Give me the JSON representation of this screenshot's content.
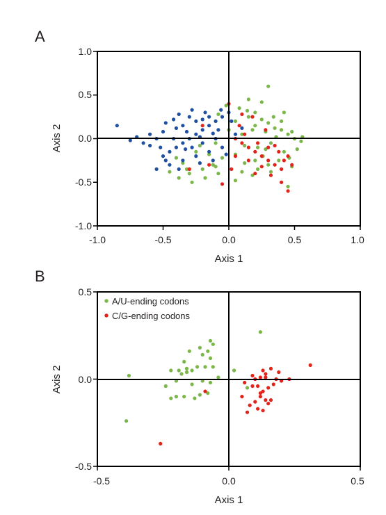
{
  "colors": {
    "green": "#7ab648",
    "red": "#e2231a",
    "blue": "#1f4fa0",
    "axis": "#000000"
  },
  "panel_a": {
    "letter": "A"
  },
  "panel_b": {
    "letter": "B"
  },
  "chart_data": [
    {
      "type": "scatter",
      "panel": "A",
      "xlabel": "Axis 1",
      "ylabel": "Axis 2",
      "xlim": [
        -1.0,
        1.0
      ],
      "ylim": [
        -1.0,
        1.0
      ],
      "xticks": [
        -1.0,
        -0.5,
        0.0,
        0.5,
        1.0
      ],
      "xtick_labels": [
        "-1.0",
        "-0.5",
        "0.0",
        "0.5",
        "1.0"
      ],
      "yticks": [
        1.0,
        0.5,
        0.0,
        -0.5,
        -1.0
      ],
      "ytick_labels": [
        "1.0",
        "0.5",
        "0.0",
        "-0.5",
        "-1.0"
      ],
      "zero_lines": true,
      "series": [
        {
          "color": "green",
          "points": [
            [
              0.15,
              0.25
            ],
            [
              0.2,
              0.3
            ],
            [
              0.25,
              0.22
            ],
            [
              0.3,
              0.18
            ],
            [
              0.35,
              0.12
            ],
            [
              0.4,
              0.1
            ],
            [
              0.45,
              0.05
            ],
            [
              0.5,
              0.0
            ],
            [
              0.55,
              -0.03
            ],
            [
              0.42,
              -0.15
            ],
            [
              0.38,
              -0.25
            ],
            [
              0.3,
              -0.3
            ],
            [
              0.22,
              -0.35
            ],
            [
              0.12,
              -0.28
            ],
            [
              0.05,
              -0.18
            ],
            [
              -0.05,
              -0.22
            ],
            [
              -0.12,
              -0.3
            ],
            [
              -0.2,
              -0.35
            ],
            [
              -0.3,
              -0.4
            ],
            [
              -0.38,
              -0.45
            ],
            [
              -0.45,
              -0.38
            ],
            [
              -0.35,
              -0.28
            ],
            [
              -0.25,
              -0.15
            ],
            [
              -0.1,
              -0.05
            ],
            [
              0.1,
              0.05
            ],
            [
              0.2,
              0.15
            ],
            [
              0.28,
              0.08
            ],
            [
              0.36,
              0.02
            ],
            [
              0.48,
              0.08
            ],
            [
              0.52,
              -0.12
            ],
            [
              0.46,
              -0.22
            ],
            [
              0.32,
              -0.38
            ],
            [
              0.18,
              -0.42
            ],
            [
              0.05,
              -0.48
            ],
            [
              -0.08,
              -0.4
            ],
            [
              -0.18,
              -0.45
            ],
            [
              -0.28,
              -0.5
            ],
            [
              0.25,
              0.42
            ],
            [
              0.3,
              0.6
            ],
            [
              0.15,
              0.45
            ],
            [
              0.08,
              0.35
            ],
            [
              -0.02,
              0.38
            ],
            [
              -0.08,
              0.28
            ],
            [
              0.42,
              0.3
            ],
            [
              0.48,
              -0.32
            ],
            [
              0.45,
              -0.55
            ],
            [
              0.22,
              -0.1
            ],
            [
              0.12,
              -0.08
            ],
            [
              0.32,
              -0.05
            ],
            [
              0.4,
              0.2
            ],
            [
              -0.15,
              -0.18
            ],
            [
              -0.22,
              -0.08
            ],
            [
              0.0,
              0.1
            ],
            [
              0.05,
              0.2
            ],
            [
              0.26,
              -0.2
            ],
            [
              0.18,
              0.1
            ],
            [
              0.34,
              0.25
            ],
            [
              0.2,
              -0.25
            ],
            [
              -0.4,
              -0.22
            ],
            [
              -0.32,
              -0.35
            ],
            [
              0.1,
              -0.38
            ],
            [
              0.56,
              0.02
            ],
            [
              -0.1,
              -0.32
            ],
            [
              0.28,
              -0.12
            ],
            [
              0.14,
              0.32
            ]
          ]
        },
        {
          "color": "blue",
          "points": [
            [
              -0.2,
              0.1
            ],
            [
              -0.25,
              0.05
            ],
            [
              -0.3,
              0.0
            ],
            [
              -0.35,
              -0.05
            ],
            [
              -0.4,
              -0.1
            ],
            [
              -0.45,
              -0.15
            ],
            [
              -0.5,
              -0.2
            ],
            [
              -0.15,
              0.15
            ],
            [
              -0.1,
              0.2
            ],
            [
              -0.05,
              0.25
            ],
            [
              0.0,
              0.3
            ],
            [
              -0.25,
              0.2
            ],
            [
              -0.3,
              0.25
            ],
            [
              -0.35,
              0.15
            ],
            [
              -0.4,
              0.12
            ],
            [
              -0.5,
              0.08
            ],
            [
              -0.55,
              0.0
            ],
            [
              -0.6,
              -0.08
            ],
            [
              -0.7,
              0.02
            ],
            [
              -0.85,
              0.15
            ],
            [
              -0.55,
              -0.35
            ],
            [
              -0.45,
              -0.3
            ],
            [
              -0.35,
              -0.25
            ],
            [
              -0.25,
              -0.2
            ],
            [
              -0.15,
              -0.15
            ],
            [
              -0.05,
              -0.1
            ],
            [
              0.05,
              0.05
            ],
            [
              0.1,
              0.12
            ],
            [
              -0.2,
              -0.05
            ],
            [
              -0.1,
              0.0
            ],
            [
              -0.18,
              0.3
            ],
            [
              -0.28,
              0.33
            ],
            [
              -0.38,
              0.28
            ],
            [
              -0.42,
              0.22
            ],
            [
              -0.33,
              -0.12
            ],
            [
              -0.22,
              -0.28
            ],
            [
              -0.12,
              -0.25
            ],
            [
              -0.02,
              -0.18
            ],
            [
              -0.6,
              0.05
            ],
            [
              -0.48,
              -0.25
            ],
            [
              -0.65,
              -0.05
            ],
            [
              -0.08,
              0.1
            ],
            [
              -0.32,
              0.08
            ],
            [
              -0.22,
              0.02
            ],
            [
              -0.12,
              0.06
            ],
            [
              -0.42,
              0.0
            ],
            [
              -0.28,
              -0.1
            ],
            [
              -0.15,
              0.25
            ],
            [
              0.02,
              0.2
            ],
            [
              -0.52,
              -0.1
            ],
            [
              -0.75,
              -0.02
            ],
            [
              -0.38,
              -0.35
            ],
            [
              -0.48,
              0.18
            ],
            [
              -0.2,
              0.22
            ],
            [
              -0.06,
              0.33
            ]
          ]
        },
        {
          "color": "red",
          "points": [
            [
              0.05,
              0.0
            ],
            [
              0.1,
              -0.05
            ],
            [
              0.15,
              -0.1
            ],
            [
              0.2,
              -0.15
            ],
            [
              0.25,
              -0.2
            ],
            [
              0.3,
              -0.25
            ],
            [
              0.35,
              -0.3
            ],
            [
              0.4,
              -0.35
            ],
            [
              0.42,
              -0.25
            ],
            [
              0.38,
              -0.15
            ],
            [
              0.3,
              -0.1
            ],
            [
              0.22,
              -0.05
            ],
            [
              0.12,
              0.05
            ],
            [
              0.08,
              0.15
            ],
            [
              0.18,
              0.25
            ],
            [
              0.28,
              0.1
            ],
            [
              0.35,
              -0.08
            ],
            [
              0.45,
              -0.2
            ],
            [
              0.48,
              -0.3
            ],
            [
              0.4,
              -0.5
            ],
            [
              0.45,
              -0.6
            ],
            [
              0.02,
              -0.35
            ],
            [
              -0.05,
              -0.52
            ],
            [
              -0.2,
              0.15
            ],
            [
              -0.15,
              -0.3
            ],
            [
              -0.3,
              -0.35
            ],
            [
              0.15,
              -0.25
            ],
            [
              0.25,
              -0.32
            ],
            [
              0.32,
              -0.42
            ],
            [
              0.05,
              -0.2
            ],
            [
              0.1,
              0.28
            ],
            [
              0.0,
              0.4
            ],
            [
              0.2,
              -0.4
            ]
          ]
        }
      ]
    },
    {
      "type": "scatter",
      "panel": "B",
      "xlabel": "Axis 1",
      "ylabel": "Axis 2",
      "xlim": [
        -0.5,
        0.5
      ],
      "ylim": [
        -0.5,
        0.5
      ],
      "xticks": [
        -0.5,
        0.0,
        0.5
      ],
      "xtick_labels": [
        "-0.5",
        "0.0",
        "0.5"
      ],
      "yticks": [
        0.5,
        0.0,
        -0.5
      ],
      "ytick_labels": [
        "0.5",
        "0.0",
        "-0.5"
      ],
      "zero_lines": true,
      "legend_position": "top-left",
      "series": [
        {
          "name": "A/U-ending codons",
          "color": "green",
          "points": [
            [
              -0.38,
              0.02
            ],
            [
              -0.39,
              -0.24
            ],
            [
              -0.07,
              0.22
            ],
            [
              -0.06,
              0.2
            ],
            [
              -0.08,
              0.16
            ],
            [
              -0.1,
              0.14
            ],
            [
              -0.11,
              0.18
            ],
            [
              -0.15,
              0.16
            ],
            [
              -0.17,
              0.1
            ],
            [
              -0.16,
              0.06
            ],
            [
              -0.14,
              0.05
            ],
            [
              -0.12,
              0.07
            ],
            [
              -0.09,
              0.07
            ],
            [
              -0.07,
              0.12
            ],
            [
              -0.06,
              0.07
            ],
            [
              -0.18,
              0.03
            ],
            [
              -0.2,
              -0.01
            ],
            [
              -0.22,
              0.05
            ],
            [
              -0.24,
              -0.04
            ],
            [
              -0.2,
              -0.1
            ],
            [
              -0.22,
              -0.11
            ],
            [
              -0.17,
              -0.1
            ],
            [
              -0.13,
              -0.11
            ],
            [
              -0.11,
              -0.09
            ],
            [
              -0.08,
              -0.08
            ],
            [
              -0.07,
              -0.02
            ],
            [
              -0.04,
              0.01
            ],
            [
              -0.16,
              0.04
            ],
            [
              -0.14,
              -0.03
            ],
            [
              -0.1,
              -0.01
            ],
            [
              0.02,
              0.05
            ],
            [
              0.12,
              0.27
            ],
            [
              0.07,
              -0.05
            ],
            [
              -0.19,
              0.05
            ]
          ]
        },
        {
          "name": "C/G-ending codons",
          "color": "red",
          "points": [
            [
              -0.26,
              -0.37
            ],
            [
              -0.09,
              -0.07
            ],
            [
              0.06,
              -0.02
            ],
            [
              0.1,
              0.0
            ],
            [
              0.12,
              0.01
            ],
            [
              0.14,
              0.03
            ],
            [
              0.16,
              0.06
            ],
            [
              0.14,
              0.01
            ],
            [
              0.18,
              0.0
            ],
            [
              0.2,
              -0.01
            ],
            [
              0.19,
              0.04
            ],
            [
              0.23,
              0.0
            ],
            [
              0.31,
              0.08
            ],
            [
              0.13,
              0.05
            ],
            [
              0.09,
              -0.04
            ],
            [
              0.11,
              -0.04
            ],
            [
              0.13,
              -0.07
            ],
            [
              0.15,
              -0.05
            ],
            [
              0.17,
              -0.03
            ],
            [
              0.12,
              -0.1
            ],
            [
              0.14,
              -0.12
            ],
            [
              0.16,
              -0.12
            ],
            [
              0.1,
              -0.13
            ],
            [
              0.08,
              -0.15
            ],
            [
              0.11,
              -0.17
            ],
            [
              0.13,
              -0.18
            ],
            [
              0.15,
              -0.14
            ],
            [
              0.05,
              -0.1
            ],
            [
              0.07,
              -0.19
            ],
            [
              0.09,
              0.02
            ],
            [
              0.12,
              -0.08
            ]
          ]
        }
      ]
    }
  ]
}
